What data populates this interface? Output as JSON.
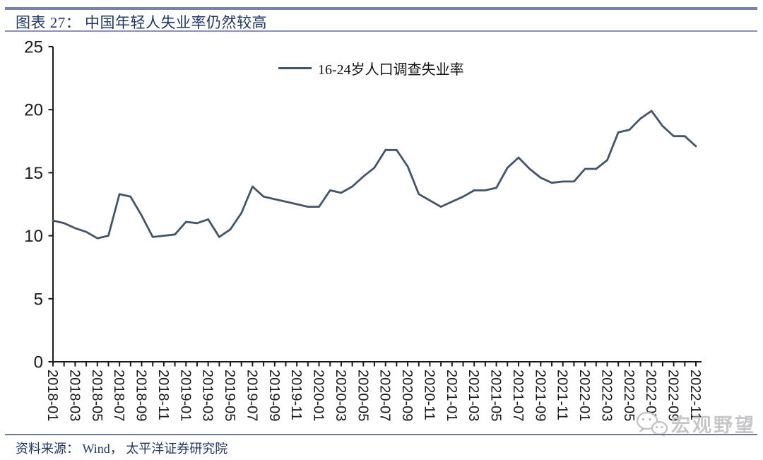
{
  "header": {
    "figure_label": "图表 27",
    "title": "图表 27： 中国年轻人失业率仍然较高"
  },
  "legend": {
    "label": "16-24岁人口调查失业率"
  },
  "chart_data": {
    "type": "line",
    "title": "中国年轻人失业率仍然较高",
    "xlabel": "",
    "ylabel": "",
    "ylim": [
      0,
      25
    ],
    "yticks": [
      0,
      5,
      10,
      15,
      20,
      25
    ],
    "grid": false,
    "legend_position": "top-center",
    "x_label_every": 2,
    "x": [
      "2018-01",
      "2018-02",
      "2018-03",
      "2018-04",
      "2018-05",
      "2018-06",
      "2018-07",
      "2018-08",
      "2018-09",
      "2018-10",
      "2018-11",
      "2018-12",
      "2019-01",
      "2019-02",
      "2019-03",
      "2019-04",
      "2019-05",
      "2019-06",
      "2019-07",
      "2019-08",
      "2019-09",
      "2019-10",
      "2019-11",
      "2019-12",
      "2020-01",
      "2020-02",
      "2020-03",
      "2020-04",
      "2020-05",
      "2020-06",
      "2020-07",
      "2020-08",
      "2020-09",
      "2020-10",
      "2020-11",
      "2020-12",
      "2021-01",
      "2021-02",
      "2021-03",
      "2021-04",
      "2021-05",
      "2021-06",
      "2021-07",
      "2021-08",
      "2021-09",
      "2021-10",
      "2021-11",
      "2021-12",
      "2022-01",
      "2022-02",
      "2022-03",
      "2022-04",
      "2022-05",
      "2022-06",
      "2022-07",
      "2022-08",
      "2022-09",
      "2022-10",
      "2022-11"
    ],
    "series": [
      {
        "name": "16-24岁人口调查失业率",
        "color": "#44546a",
        "values": [
          11.2,
          11.0,
          10.6,
          10.3,
          9.8,
          10.0,
          13.3,
          13.1,
          11.6,
          9.9,
          10.0,
          10.1,
          11.1,
          11.0,
          11.3,
          9.9,
          10.5,
          11.8,
          13.9,
          13.1,
          12.9,
          12.7,
          12.5,
          12.3,
          12.3,
          13.6,
          13.4,
          13.9,
          14.7,
          15.4,
          16.8,
          16.8,
          15.5,
          13.3,
          12.8,
          12.3,
          12.7,
          13.1,
          13.6,
          13.6,
          13.8,
          15.4,
          16.2,
          15.3,
          14.6,
          14.2,
          14.3,
          14.3,
          15.3,
          15.3,
          16.0,
          18.2,
          18.4,
          19.3,
          19.9,
          18.7,
          17.9,
          17.9,
          17.1
        ]
      }
    ]
  },
  "footer": {
    "source": "资料来源： Wind， 太平洋证券研究院"
  },
  "watermark": {
    "icon": "wechat-icon",
    "text": "宏观野望"
  },
  "colors": {
    "line": "#44546a",
    "title_text": "#1f3864",
    "rule": "#7b81ae",
    "axis": "#1a1a1a",
    "watermark": "#c7c7ca"
  }
}
